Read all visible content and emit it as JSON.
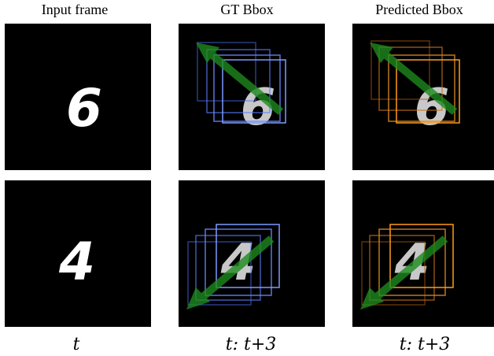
{
  "columns": [
    {
      "title": "Input frame",
      "caption": "t"
    },
    {
      "title": "GT Bbox",
      "caption": "t: t+3"
    },
    {
      "title": "Predicted Bbox",
      "caption": "t: t+3"
    }
  ],
  "rows": [
    {
      "digit": "6",
      "motion": "up-left"
    },
    {
      "digit": "4",
      "motion": "down-left"
    }
  ],
  "colors": {
    "gt_box": "#5a7dff",
    "pred_box": "#ff9a1a",
    "arrow": "#1f8a1f",
    "digit": "#ffffff",
    "digit_faded": "#c8c8c8"
  }
}
